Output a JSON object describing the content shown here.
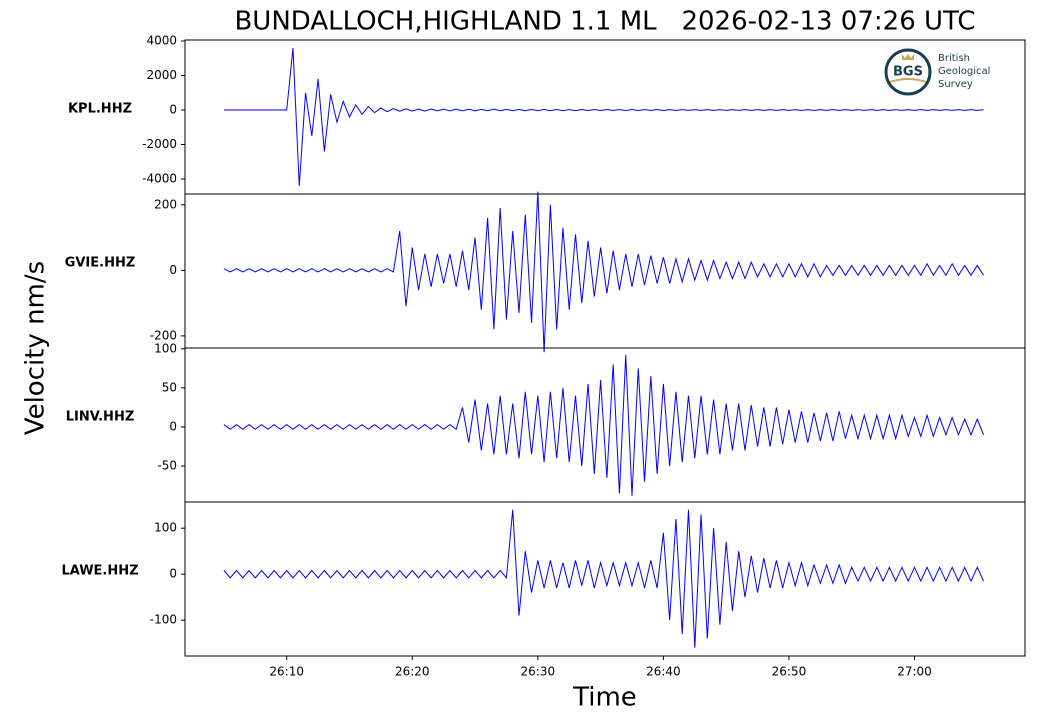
{
  "chart_data": {
    "type": "line",
    "title": "BUNDALLOCH,HIGHLAND 1.1 ML   2026-02-13 07:26 UTC",
    "xlabel": "Time",
    "ylabel": "Velocity nm/s",
    "logo": {
      "mark": "BGS",
      "lines": [
        "British",
        "Geological",
        "Survey"
      ]
    },
    "xlim": [
      1.9,
      68.8
    ],
    "xticks": [
      {
        "value": 10,
        "label": "26:10"
      },
      {
        "value": 20,
        "label": "26:20"
      },
      {
        "value": 30,
        "label": "26:30"
      },
      {
        "value": 40,
        "label": "26:40"
      },
      {
        "value": 50,
        "label": "26:50"
      },
      {
        "value": 60,
        "label": "27:00"
      }
    ],
    "x": [
      5,
      5.5,
      6,
      6.5,
      7,
      7.5,
      8,
      8.5,
      9,
      9.5,
      10,
      10.5,
      11,
      11.5,
      12,
      12.5,
      13,
      13.5,
      14,
      14.5,
      15,
      15.5,
      16,
      16.5,
      17,
      17.5,
      18,
      18.5,
      19,
      19.5,
      20,
      20.5,
      21,
      21.5,
      22,
      22.5,
      23,
      23.5,
      24,
      24.5,
      25,
      25.5,
      26,
      26.5,
      27,
      27.5,
      28,
      28.5,
      29,
      29.5,
      30,
      30.5,
      31,
      31.5,
      32,
      32.5,
      33,
      33.5,
      34,
      34.5,
      35,
      35.5,
      36,
      36.5,
      37,
      37.5,
      38,
      38.5,
      39,
      39.5,
      40,
      40.5,
      41,
      41.5,
      42,
      42.5,
      43,
      43.5,
      44,
      44.5,
      45,
      45.5,
      46,
      46.5,
      47,
      47.5,
      48,
      48.5,
      49,
      49.5,
      50,
      50.5,
      51,
      51.5,
      52,
      52.5,
      53,
      53.5,
      54,
      54.5,
      55,
      55.5,
      56,
      56.5,
      57,
      57.5,
      58,
      58.5,
      59,
      59.5,
      60,
      60.5,
      61,
      61.5,
      62,
      62.5,
      63,
      63.5,
      64,
      64.5,
      65,
      65.5
    ],
    "series": [
      {
        "name": "KPL.HHZ",
        "color": "#0000ff",
        "ylim": [
          -4870,
          4060
        ],
        "yticks": [
          4000,
          2000,
          0,
          -2000,
          -4000
        ],
        "values": [
          0,
          0,
          0,
          0,
          0,
          0,
          0,
          0,
          0,
          0,
          0,
          3600,
          -4400,
          1000,
          -1500,
          1800,
          -2400,
          900,
          -700,
          500,
          -400,
          300,
          -250,
          200,
          -150,
          120,
          -100,
          80,
          -70,
          70,
          -60,
          60,
          -60,
          60,
          -50,
          50,
          -50,
          50,
          -50,
          50,
          -50,
          40,
          -40,
          50,
          -40,
          40,
          -40,
          40,
          -40,
          40,
          -40,
          40,
          -40,
          40,
          -40,
          30,
          -40,
          30,
          -30,
          30,
          -30,
          30,
          -30,
          30,
          -30,
          30,
          -30,
          30,
          -30,
          30,
          -30,
          20,
          -30,
          20,
          -20,
          20,
          -20,
          20,
          -20,
          20,
          -20,
          20,
          -20,
          20,
          -20,
          20,
          -20,
          20,
          -20,
          20,
          -20,
          20,
          -20,
          20,
          -20,
          20,
          -20,
          20,
          -20,
          20,
          -20,
          20,
          -20,
          20,
          -20,
          20,
          -20,
          20,
          -20,
          20,
          -20,
          20,
          -20,
          20,
          -20,
          20,
          -20,
          20,
          -20,
          20,
          -20,
          20
        ]
      },
      {
        "name": "GVIE.HHZ",
        "color": "#0000ff",
        "ylim": [
          -237,
          233
        ],
        "yticks": [
          200,
          0,
          -200
        ],
        "values": [
          5,
          -5,
          5,
          -5,
          5,
          -5,
          5,
          -5,
          5,
          -5,
          5,
          -5,
          5,
          -5,
          5,
          -5,
          5,
          -5,
          5,
          -5,
          5,
          -5,
          5,
          -5,
          5,
          -5,
          5,
          -5,
          120,
          -110,
          70,
          -60,
          50,
          -50,
          50,
          -40,
          50,
          -50,
          60,
          -60,
          100,
          -120,
          160,
          -180,
          190,
          -150,
          120,
          -130,
          170,
          -160,
          240,
          -250,
          200,
          -180,
          130,
          -120,
          110,
          -100,
          90,
          -80,
          70,
          -70,
          60,
          -60,
          50,
          -50,
          50,
          -45,
          45,
          -40,
          40,
          -40,
          35,
          -35,
          35,
          -30,
          30,
          -30,
          30,
          -25,
          25,
          -25,
          25,
          -25,
          25,
          -20,
          20,
          -20,
          20,
          -20,
          20,
          -20,
          20,
          -20,
          20,
          -20,
          15,
          -15,
          15,
          -15,
          15,
          -15,
          15,
          -15,
          15,
          -15,
          15,
          -15,
          15,
          -15,
          15,
          -15,
          20,
          -15,
          15,
          -15,
          20,
          -15,
          15,
          -15,
          15,
          -15
        ]
      },
      {
        "name": "LINV.HHZ",
        "color": "#0000ff",
        "ylim": [
          -96,
          101
        ],
        "yticks": [
          100,
          50,
          0,
          -50
        ],
        "values": [
          3,
          -3,
          3,
          -3,
          3,
          -3,
          3,
          -3,
          3,
          -3,
          3,
          -3,
          3,
          -3,
          3,
          -3,
          3,
          -3,
          3,
          -3,
          3,
          -3,
          3,
          -3,
          3,
          -3,
          3,
          -3,
          3,
          -3,
          3,
          -3,
          3,
          -3,
          3,
          -3,
          3,
          -3,
          25,
          -20,
          35,
          -30,
          30,
          -35,
          40,
          -35,
          30,
          -40,
          45,
          -35,
          40,
          -45,
          45,
          -40,
          50,
          -45,
          40,
          -50,
          55,
          -60,
          60,
          -65,
          80,
          -85,
          92,
          -88,
          75,
          -70,
          65,
          -60,
          55,
          -50,
          45,
          -45,
          40,
          -40,
          40,
          -35,
          35,
          -35,
          30,
          -30,
          30,
          -30,
          28,
          -25,
          25,
          -25,
          25,
          -22,
          22,
          -20,
          20,
          -20,
          18,
          -18,
          18,
          -18,
          20,
          -15,
          15,
          -15,
          15,
          -15,
          15,
          -15,
          15,
          -15,
          15,
          -12,
          12,
          -12,
          15,
          -12,
          12,
          -10,
          12,
          -10,
          10,
          -10,
          10,
          -10
        ]
      },
      {
        "name": "LAWE.HHZ",
        "color": "#0000ff",
        "ylim": [
          -178,
          157
        ],
        "yticks": [
          100,
          0,
          -100
        ],
        "values": [
          8,
          -8,
          8,
          -8,
          8,
          -8,
          8,
          -8,
          8,
          -8,
          8,
          -8,
          8,
          -8,
          8,
          -8,
          8,
          -8,
          8,
          -8,
          8,
          -8,
          8,
          -8,
          8,
          -8,
          8,
          -8,
          8,
          -8,
          8,
          -8,
          8,
          -8,
          8,
          -8,
          8,
          -8,
          8,
          -8,
          8,
          -8,
          8,
          -8,
          8,
          -8,
          140,
          -90,
          50,
          -40,
          30,
          -30,
          30,
          -30,
          25,
          -30,
          30,
          -25,
          30,
          -30,
          25,
          -25,
          25,
          -25,
          25,
          -25,
          25,
          -30,
          30,
          -30,
          90,
          -100,
          120,
          -130,
          140,
          -160,
          130,
          -140,
          100,
          -110,
          70,
          -80,
          50,
          -50,
          40,
          -40,
          35,
          -30,
          30,
          -30,
          25,
          -25,
          25,
          -25,
          20,
          -20,
          20,
          -20,
          20,
          -20,
          15,
          -15,
          15,
          -15,
          15,
          -15,
          15,
          -15,
          15,
          -15,
          15,
          -15,
          15,
          -15,
          15,
          -15,
          15,
          -15,
          15,
          -15,
          15,
          -15
        ]
      }
    ]
  }
}
